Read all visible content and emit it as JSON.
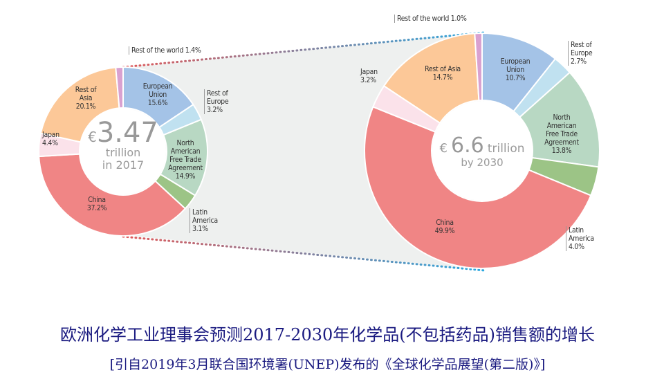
{
  "chart_data": [
    {
      "type": "pie",
      "donut": true,
      "categories": [
        "European Union",
        "Rest of Europe",
        "North American Free Trade Agreement",
        "Latin America",
        "China",
        "Japan",
        "Rest of Asia",
        "Rest of the world"
      ],
      "values": [
        15.6,
        3.2,
        14.9,
        3.1,
        37.2,
        4.4,
        20.1,
        1.4
      ],
      "labels": [
        "European\nUnion\n15.6%",
        "Rest of\nEurope\n3.2%",
        "North\nAmerican\nFree Trade\nAgreement\n14.9%",
        "Latin\nAmerica\n3.1%",
        "China\n37.2%",
        "Japan\n4.4%",
        "Rest of\nAsia\n20.1%",
        "Rest of the world 1.4%"
      ],
      "center": {
        "currency": "€",
        "value": "3.47",
        "unit": "trillion",
        "period": "in 2017"
      }
    },
    {
      "type": "pie",
      "donut": true,
      "categories": [
        "European Union",
        "Rest of Europe",
        "North American Free Trade Agreement",
        "Latin America",
        "China",
        "Japan",
        "Rest of Asia",
        "Rest of the world"
      ],
      "values": [
        10.7,
        2.7,
        13.8,
        4.0,
        49.9,
        3.2,
        14.7,
        1.0
      ],
      "labels": [
        "European\nUnion\n10.7%",
        "Rest of\nEurope\n2.7%",
        "North\nAmerican\nFree Trade\nAgreement\n13.8%",
        "Latin\nAmerica\n4.0%",
        "China\n49.9%",
        "Japan\n3.2%",
        "Rest of Asia\n14.7%",
        "Rest of the world 1.0%"
      ],
      "center": {
        "currency": "€",
        "value": "6.6",
        "unit": "trillion",
        "period": "by 2030"
      }
    }
  ],
  "colors": {
    "European Union": "#a4c3e7",
    "Rest of Europe": "#c0e1f0",
    "North American Free Trade Agreement": "#b8d8c3",
    "Latin America": "#9cc486",
    "China": "#f08585",
    "Japan": "#fbe2ea",
    "Rest of Asia": "#fcc898",
    "Rest of the world": "#d9a1d0"
  },
  "caption": {
    "title": "欧洲化学工业理事会预测2017-2030年化学品(不包括药品)销售额的增长",
    "source": "[引自2019年3月联合国环境署(UNEP)发布的《全球化学品展望(第二版)》]"
  }
}
